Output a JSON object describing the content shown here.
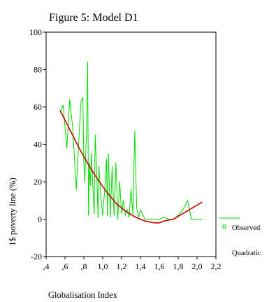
{
  "chart_data": {
    "type": "line",
    "title": "Figure 5: Model D1",
    "xlabel": "Globalisation Index",
    "ylabel": "1$ poverty line (%)",
    "xlim": [
      0.4,
      2.2
    ],
    "ylim": [
      -20,
      100
    ],
    "xticks": [
      0.4,
      0.6,
      0.8,
      1.0,
      1.2,
      1.4,
      1.6,
      1.8,
      2.0,
      2.2
    ],
    "xtick_labels": [
      ",4",
      ",6",
      ",8",
      "1,0",
      "1,2",
      "1,4",
      "1,6",
      "1,8",
      "2,0",
      "2,2"
    ],
    "yticks": [
      -20,
      0,
      20,
      40,
      60,
      80,
      100
    ],
    "ytick_labels": [
      "-20",
      "0",
      "20",
      "40",
      "60",
      "80",
      "100"
    ],
    "grid": false,
    "legend_position": "right",
    "series": [
      {
        "name": "Observed",
        "color": "#00dd00",
        "x": [
          0.55,
          0.58,
          0.62,
          0.65,
          0.68,
          0.72,
          0.75,
          0.77,
          0.79,
          0.8,
          0.81,
          0.83,
          0.84,
          0.85,
          0.86,
          0.87,
          0.88,
          0.9,
          0.91,
          0.92,
          0.94,
          0.95,
          0.96,
          0.98,
          1.0,
          1.02,
          1.04,
          1.05,
          1.06,
          1.08,
          1.1,
          1.12,
          1.14,
          1.16,
          1.18,
          1.2,
          1.22,
          1.24,
          1.26,
          1.28,
          1.3,
          1.32,
          1.34,
          1.36,
          1.38,
          1.4,
          1.45,
          1.5,
          1.55,
          1.6,
          1.65,
          1.7,
          1.75,
          1.8,
          1.85,
          1.9,
          1.94,
          1.97,
          2.0,
          2.05
        ],
        "values": [
          57,
          61,
          38,
          64,
          50,
          16,
          45,
          63,
          65,
          30,
          20,
          50,
          84,
          2,
          30,
          18,
          35,
          12,
          3,
          45,
          20,
          1,
          28,
          12,
          2,
          15,
          32,
          2,
          35,
          1,
          28,
          2,
          30,
          0,
          20,
          3,
          10,
          2,
          5,
          1,
          16,
          3,
          47,
          6,
          1,
          5,
          0,
          0,
          0,
          0,
          1,
          0,
          0,
          2,
          5,
          10,
          0,
          0,
          0,
          0
        ]
      },
      {
        "name": "Quadratic",
        "color": "#cc0000",
        "x": [
          0.55,
          0.65,
          0.75,
          0.85,
          0.95,
          1.05,
          1.15,
          1.25,
          1.35,
          1.45,
          1.55,
          1.6,
          1.65,
          1.75,
          1.85,
          1.95,
          2.05
        ],
        "values": [
          58,
          48,
          38,
          29,
          21,
          14,
          8,
          4,
          1,
          -1,
          -2,
          -2,
          -1,
          0,
          3,
          6,
          9
        ]
      }
    ]
  }
}
